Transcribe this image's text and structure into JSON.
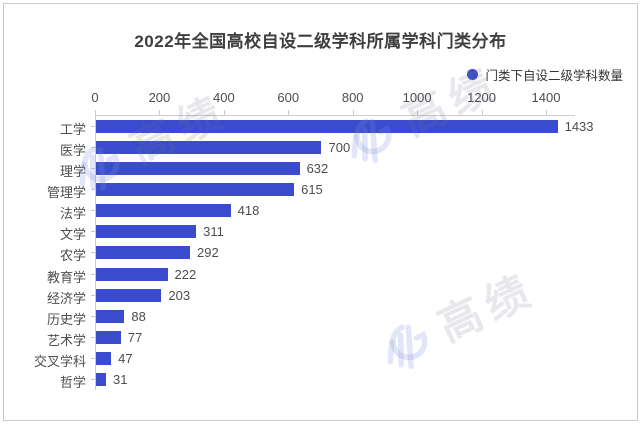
{
  "card": {
    "background": "#ffffff",
    "border_color": "#c9c9c9"
  },
  "chart_data": {
    "type": "bar",
    "orientation": "horizontal",
    "title": "2022年全国高校自设二级学科所属学科门类分布",
    "legend": [
      {
        "label": "门类下自设二级学科数量",
        "color": "#3a4ccd"
      }
    ],
    "legend_position": "top-right",
    "axis_position": "top",
    "categories": [
      "工学",
      "医学",
      "理学",
      "管理学",
      "法学",
      "文学",
      "农学",
      "教育学",
      "经济学",
      "历史学",
      "艺术学",
      "交叉学科",
      "哲学"
    ],
    "values": [
      1433,
      700,
      632,
      615,
      418,
      311,
      292,
      222,
      203,
      88,
      77,
      47,
      31
    ],
    "value_labels": true,
    "x_ticks": [
      0,
      200,
      400,
      600,
      800,
      1000,
      1200,
      1400
    ],
    "xlim": [
      0,
      1487
    ],
    "xlabel": "",
    "ylabel": "",
    "grid": false,
    "bar_color": "#3a4ccd",
    "text_color": "#4d4d4d",
    "axis_color": "#cccccc"
  },
  "watermark": {
    "text": "高绩"
  }
}
